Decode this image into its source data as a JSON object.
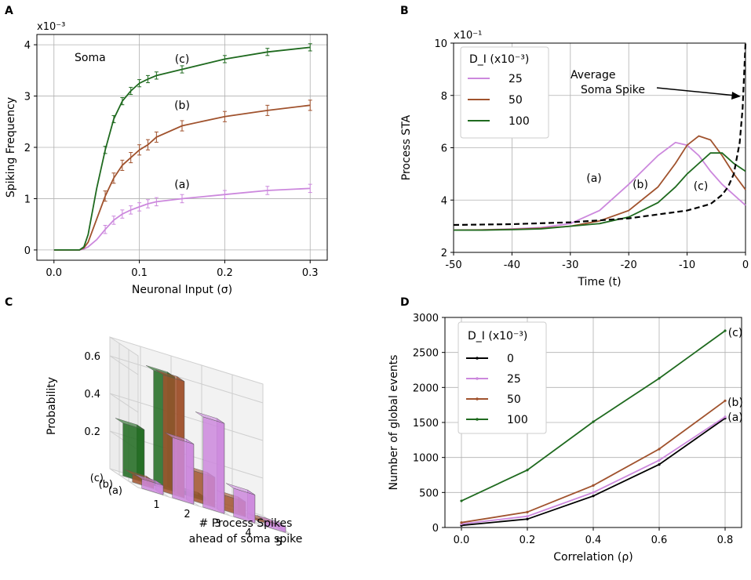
{
  "panels": {
    "A": "A",
    "B": "B",
    "C": "C",
    "D": "D"
  },
  "colors": {
    "a": "#cc88dd",
    "b": "#a0522d",
    "c": "#1f6a1f",
    "zero": "#000000"
  },
  "chart_data": [
    {
      "panel": "A",
      "type": "line",
      "xlabel": "Neuronal Input (σ)",
      "ylabel": "Spiking Frequency",
      "scale_label": "x10⁻³",
      "xlim": [
        -0.02,
        0.32
      ],
      "ylim": [
        -0.2,
        4.2
      ],
      "xticks": [
        "0.0",
        "0.1",
        "0.2",
        "0.3"
      ],
      "yticks": [
        "0",
        "1",
        "2",
        "3",
        "4"
      ],
      "annotation": "Soma",
      "series": [
        {
          "name": "(a)",
          "color_key": "a",
          "x": [
            0,
            0.02,
            0.03,
            0.035,
            0.04,
            0.05,
            0.06,
            0.07,
            0.08,
            0.09,
            0.1,
            0.11,
            0.12,
            0.15,
            0.2,
            0.25,
            0.3
          ],
          "y": [
            0,
            0,
            0,
            0.02,
            0.06,
            0.2,
            0.4,
            0.58,
            0.7,
            0.78,
            0.84,
            0.9,
            0.94,
            1.0,
            1.08,
            1.16,
            1.2
          ],
          "err": [
            0,
            0,
            0,
            0,
            0,
            0,
            0.08,
            0.08,
            0.08,
            0.08,
            0.08,
            0.08,
            0.08,
            0.08,
            0.08,
            0.08,
            0.08
          ]
        },
        {
          "name": "(b)",
          "color_key": "b",
          "x": [
            0,
            0.02,
            0.03,
            0.035,
            0.04,
            0.05,
            0.06,
            0.07,
            0.08,
            0.09,
            0.1,
            0.11,
            0.12,
            0.15,
            0.2,
            0.25,
            0.3
          ],
          "y": [
            0,
            0,
            0,
            0.04,
            0.15,
            0.6,
            1.05,
            1.4,
            1.65,
            1.8,
            1.95,
            2.05,
            2.2,
            2.42,
            2.6,
            2.72,
            2.82
          ],
          "err": [
            0,
            0,
            0,
            0,
            0,
            0,
            0.1,
            0.1,
            0.1,
            0.1,
            0.1,
            0.1,
            0.1,
            0.1,
            0.1,
            0.1,
            0.1
          ]
        },
        {
          "name": "(c)",
          "color_key": "c",
          "x": [
            0,
            0.02,
            0.03,
            0.035,
            0.04,
            0.05,
            0.06,
            0.07,
            0.08,
            0.09,
            0.1,
            0.11,
            0.12,
            0.15,
            0.2,
            0.25,
            0.3
          ],
          "y": [
            0,
            0,
            0,
            0.06,
            0.3,
            1.2,
            1.95,
            2.55,
            2.9,
            3.1,
            3.25,
            3.33,
            3.4,
            3.52,
            3.72,
            3.86,
            3.95
          ],
          "err": [
            0,
            0,
            0,
            0,
            0,
            0,
            0.07,
            0.07,
            0.07,
            0.07,
            0.07,
            0.07,
            0.07,
            0.07,
            0.07,
            0.07,
            0.07
          ]
        }
      ]
    },
    {
      "panel": "B",
      "type": "line",
      "xlabel": "Time (t)",
      "ylabel": "Process STA",
      "scale_label": "x10⁻¹",
      "xlim": [
        -50,
        0
      ],
      "ylim": [
        2,
        10
      ],
      "xticks": [
        "-50",
        "-40",
        "-30",
        "-20",
        "-10",
        "0"
      ],
      "yticks": [
        "2",
        "4",
        "6",
        "8",
        "10"
      ],
      "legend_title": "D_I (x10⁻³)",
      "legend_position": "top-left",
      "annotation": [
        "Average",
        "Soma Spike"
      ],
      "series": [
        {
          "name": "25",
          "label": "(a)",
          "color_key": "a",
          "x": [
            -50,
            -45,
            -40,
            -35,
            -30,
            -25,
            -20,
            -15,
            -12,
            -10,
            -8,
            -6,
            -4,
            -2,
            0
          ],
          "y": [
            2.85,
            2.86,
            2.9,
            2.95,
            3.1,
            3.6,
            4.6,
            5.7,
            6.2,
            6.1,
            5.7,
            5.1,
            4.6,
            4.2,
            3.8
          ]
        },
        {
          "name": "50",
          "label": "(b)",
          "color_key": "b",
          "x": [
            -50,
            -45,
            -40,
            -35,
            -30,
            -25,
            -20,
            -15,
            -12,
            -10,
            -8,
            -6,
            -4,
            -2,
            0
          ],
          "y": [
            2.85,
            2.86,
            2.88,
            2.92,
            3.0,
            3.2,
            3.6,
            4.5,
            5.4,
            6.1,
            6.45,
            6.3,
            5.7,
            5.0,
            4.4
          ]
        },
        {
          "name": "100",
          "label": "(c)",
          "color_key": "c",
          "x": [
            -50,
            -45,
            -40,
            -35,
            -30,
            -25,
            -20,
            -15,
            -12,
            -10,
            -8,
            -6,
            -4,
            -2,
            0
          ],
          "y": [
            2.85,
            2.85,
            2.87,
            2.9,
            3.0,
            3.1,
            3.35,
            3.9,
            4.5,
            5.0,
            5.4,
            5.8,
            5.8,
            5.4,
            5.1
          ]
        },
        {
          "name": "Average Soma Spike",
          "color_key": "zero",
          "dashed": true,
          "x": [
            -50,
            -40,
            -30,
            -20,
            -15,
            -10,
            -6,
            -4,
            -3,
            -2,
            -1,
            -0.5,
            0
          ],
          "y": [
            3.05,
            3.08,
            3.15,
            3.3,
            3.45,
            3.6,
            3.85,
            4.2,
            4.5,
            5.0,
            6.2,
            7.5,
            10
          ]
        }
      ]
    },
    {
      "panel": "C",
      "type": "bar3d",
      "zlabel": "Probability",
      "xlabel": [
        "# Process Spikes",
        "ahead of soma spike"
      ],
      "xticks": [
        "1",
        "2",
        "3",
        "4",
        "5"
      ],
      "zticks": [
        "0.2",
        "0.4",
        "0.6"
      ],
      "rows": [
        "(c)",
        "(b)",
        "(a)"
      ],
      "values": {
        "(c)": [
          0.28,
          0.61,
          0.02,
          0,
          0
        ],
        "(b)": [
          0.04,
          0.62,
          0.16,
          0.08,
          0.01
        ],
        "(a)": [
          0.05,
          0.32,
          0.48,
          0.15,
          0.03
        ]
      }
    },
    {
      "panel": "D",
      "type": "line",
      "xlabel": "Correlation (ρ)",
      "ylabel": "Number of global events",
      "xlim": [
        -0.05,
        0.85
      ],
      "ylim": [
        0,
        3000
      ],
      "xticks": [
        "0.0",
        "0.2",
        "0.4",
        "0.6",
        "0.8"
      ],
      "yticks": [
        "0",
        "500",
        "1000",
        "1500",
        "2000",
        "2500",
        "3000"
      ],
      "legend_title": "D_I (x10⁻³)",
      "legend_position": "top-left",
      "series": [
        {
          "name": "0",
          "color_key": "zero",
          "x": [
            0,
            0.2,
            0.4,
            0.6,
            0.8
          ],
          "y": [
            30,
            120,
            450,
            900,
            1560
          ]
        },
        {
          "name": "25",
          "color_key": "a",
          "x": [
            0,
            0.2,
            0.4,
            0.6,
            0.8
          ],
          "y": [
            50,
            160,
            500,
            960,
            1580
          ]
        },
        {
          "name": "50",
          "color_key": "b",
          "label": "(b)",
          "x": [
            0,
            0.2,
            0.4,
            0.6,
            0.8
          ],
          "y": [
            70,
            220,
            600,
            1120,
            1810
          ]
        },
        {
          "name": "100",
          "color_key": "c",
          "label": "(c)",
          "x": [
            0,
            0.2,
            0.4,
            0.6,
            0.8
          ],
          "y": [
            380,
            820,
            1510,
            2130,
            2810
          ]
        }
      ],
      "end_labels": [
        "(c)",
        "(b)",
        "(a)"
      ]
    }
  ]
}
